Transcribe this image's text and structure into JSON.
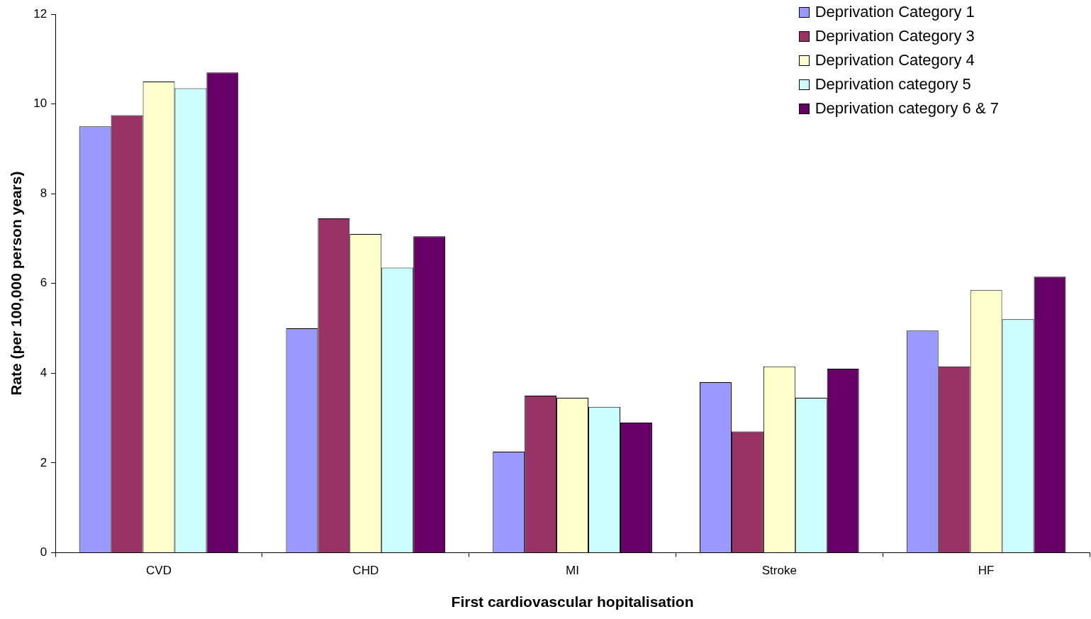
{
  "chart_data": {
    "type": "bar",
    "xlabel": "First cardiovascular hopitalisation",
    "ylabel": "Rate (per 100,000 person years)",
    "categories": [
      "CVD",
      "CHD",
      "MI",
      "Stroke",
      "HF"
    ],
    "series": [
      {
        "name": "Deprivation Category 1",
        "color": "#9999ff",
        "values": [
          9.5,
          5.0,
          2.25,
          3.8,
          4.95
        ]
      },
      {
        "name": "Deprivation Category 3",
        "color": "#993366",
        "values": [
          9.75,
          7.45,
          3.5,
          2.7,
          4.15
        ]
      },
      {
        "name": "Deprivation Category 4",
        "color": "#ffffcc",
        "values": [
          10.5,
          7.1,
          3.45,
          4.15,
          5.85
        ]
      },
      {
        "name": "Deprivation category 5",
        "color": "#ccffff",
        "values": [
          10.35,
          6.35,
          3.25,
          3.45,
          5.2
        ]
      },
      {
        "name": "Deprivation category 6 & 7",
        "color": "#660066",
        "values": [
          10.7,
          7.05,
          2.9,
          4.1,
          6.15
        ]
      }
    ],
    "ylim": [
      0,
      12
    ],
    "yticks": [
      0,
      2,
      4,
      6,
      8,
      10,
      12
    ],
    "grid": false,
    "legend": "top right"
  }
}
